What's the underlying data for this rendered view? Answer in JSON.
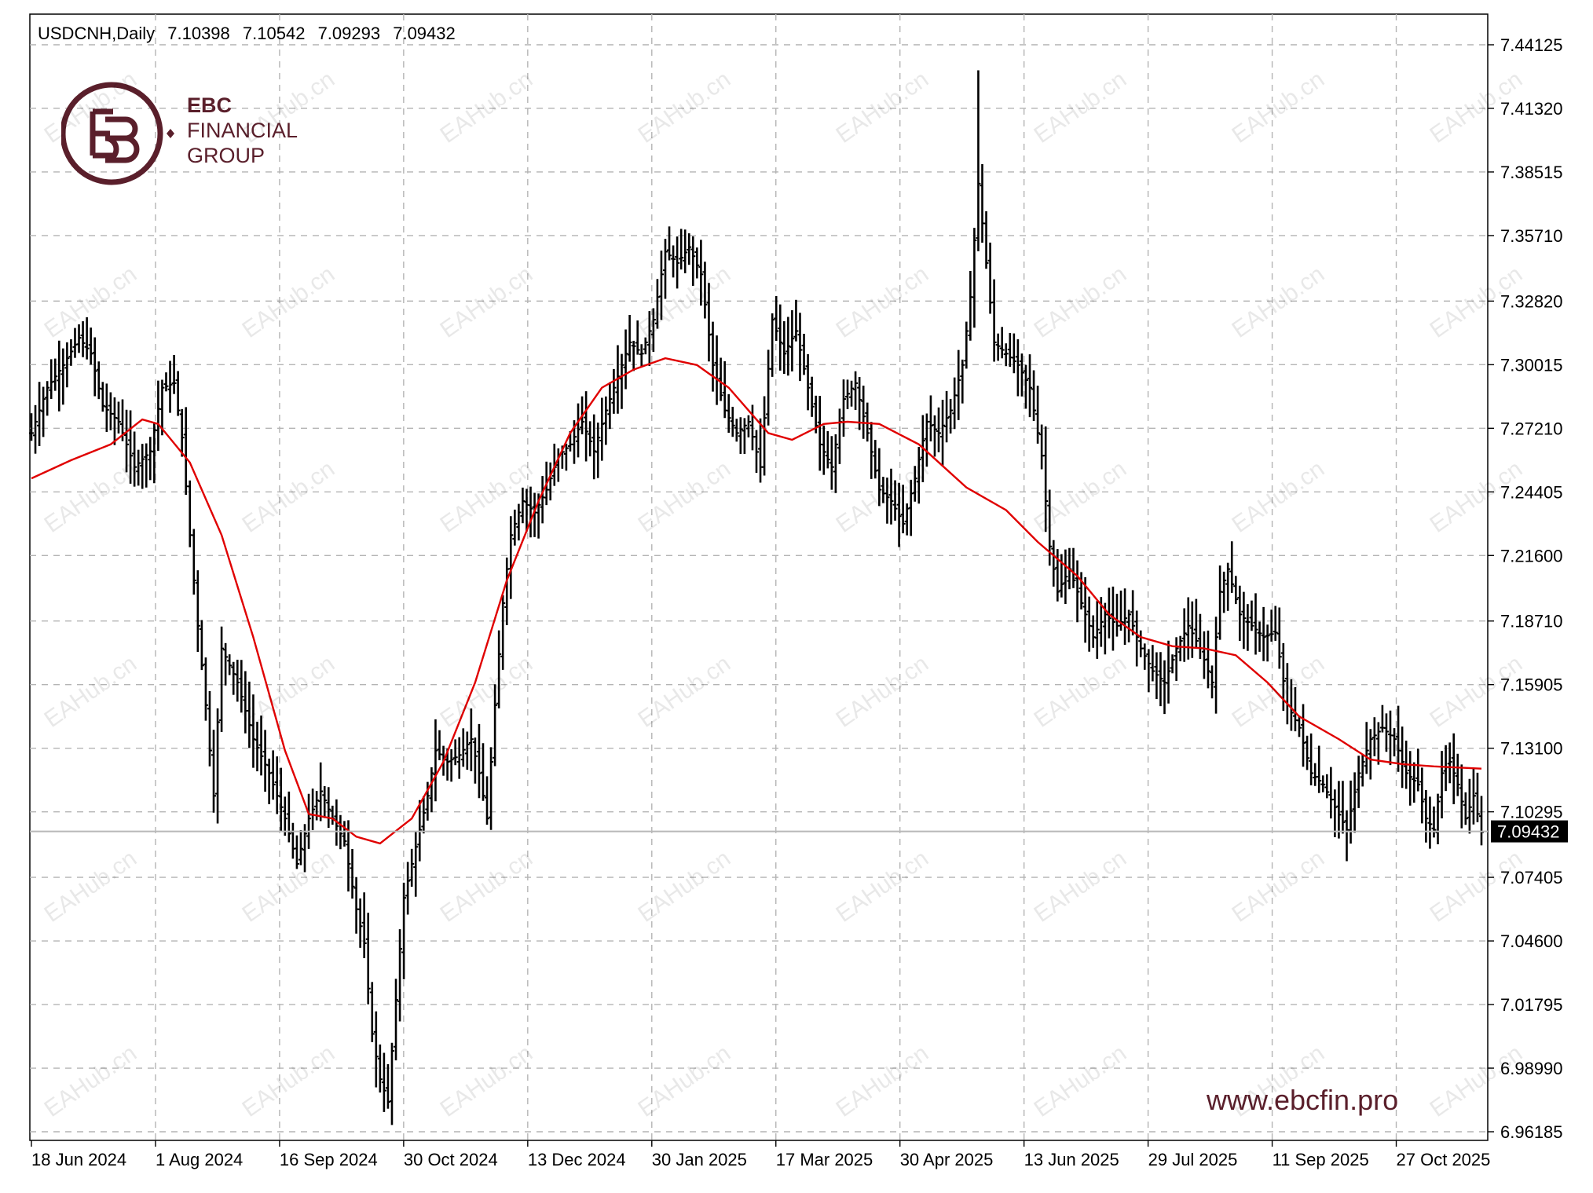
{
  "header": {
    "symbol": "USDCNH,Daily",
    "open": "7.10398",
    "high": "7.10542",
    "low": "7.09293",
    "close": "7.09432"
  },
  "logo": {
    "line1": "EBC",
    "line2": "FINANCIAL",
    "line3": "GROUP"
  },
  "website": "www.ebcfin.pro",
  "watermark": "EAHub.cn",
  "colors": {
    "bars": "#000000",
    "ma": "#e00000",
    "grid": "#b4b4b4",
    "brand": "#5a1f2b",
    "current_price_box": "#000000"
  },
  "chart_data": {
    "type": "line",
    "title": "USDCNH,Daily",
    "series_style": "ohlc-bars with red moving average",
    "x_tick_labels": [
      "18 Jun 2024",
      "1 Aug 2024",
      "16 Sep 2024",
      "30 Oct 2024",
      "13 Dec 2024",
      "30 Jan 2025",
      "17 Mar 2025",
      "30 Apr 2025",
      "13 Jun 2025",
      "29 Jul 2025",
      "11 Sep 2025",
      "27 Oct 2025"
    ],
    "y_tick_labels": [
      "7.44125",
      "7.41320",
      "7.38515",
      "7.35710",
      "7.32820",
      "7.30015",
      "7.27210",
      "7.24405",
      "7.21600",
      "7.18710",
      "7.15905",
      "7.13100",
      "7.10295",
      "7.07405",
      "7.04600",
      "7.01795",
      "6.98990",
      "6.96185"
    ],
    "ylim": [
      6.96185,
      7.44125
    ],
    "current_price": "7.09432",
    "grid": true,
    "close_path": [
      [
        0,
        7.27
      ],
      [
        4,
        7.29
      ],
      [
        8,
        7.3
      ],
      [
        12,
        7.312
      ],
      [
        15,
        7.305
      ],
      [
        18,
        7.282
      ],
      [
        22,
        7.275
      ],
      [
        26,
        7.255
      ],
      [
        30,
        7.262
      ],
      [
        33,
        7.29
      ],
      [
        36,
        7.292
      ],
      [
        38,
        7.268
      ],
      [
        40,
        7.225
      ],
      [
        42,
        7.185
      ],
      [
        44,
        7.15
      ],
      [
        46,
        7.11
      ],
      [
        48,
        7.175
      ],
      [
        52,
        7.16
      ],
      [
        56,
        7.135
      ],
      [
        60,
        7.12
      ],
      [
        64,
        7.1
      ],
      [
        67,
        7.08
      ],
      [
        70,
        7.1
      ],
      [
        73,
        7.112
      ],
      [
        76,
        7.1
      ],
      [
        79,
        7.09
      ],
      [
        82,
        7.06
      ],
      [
        84,
        7.045
      ],
      [
        86,
        7.005
      ],
      [
        88,
        6.985
      ],
      [
        90,
        6.975
      ],
      [
        92,
        7.02
      ],
      [
        94,
        7.065
      ],
      [
        96,
        7.08
      ],
      [
        98,
        7.095
      ],
      [
        100,
        7.11
      ],
      [
        102,
        7.13
      ],
      [
        105,
        7.125
      ],
      [
        108,
        7.128
      ],
      [
        111,
        7.135
      ],
      [
        113,
        7.12
      ],
      [
        115,
        7.1
      ],
      [
        117,
        7.15
      ],
      [
        119,
        7.195
      ],
      [
        121,
        7.225
      ],
      [
        124,
        7.24
      ],
      [
        127,
        7.235
      ],
      [
        130,
        7.245
      ],
      [
        133,
        7.26
      ],
      [
        136,
        7.265
      ],
      [
        139,
        7.275
      ],
      [
        142,
        7.262
      ],
      [
        145,
        7.28
      ],
      [
        148,
        7.295
      ],
      [
        151,
        7.31
      ],
      [
        154,
        7.305
      ],
      [
        157,
        7.32
      ],
      [
        160,
        7.35
      ],
      [
        163,
        7.345
      ],
      [
        166,
        7.352
      ],
      [
        169,
        7.34
      ],
      [
        172,
        7.3
      ],
      [
        175,
        7.28
      ],
      [
        178,
        7.27
      ],
      [
        181,
        7.275
      ],
      [
        184,
        7.255
      ],
      [
        187,
        7.32
      ],
      [
        190,
        7.305
      ],
      [
        193,
        7.315
      ],
      [
        196,
        7.29
      ],
      [
        199,
        7.265
      ],
      [
        202,
        7.255
      ],
      [
        205,
        7.285
      ],
      [
        208,
        7.292
      ],
      [
        211,
        7.27
      ],
      [
        214,
        7.245
      ],
      [
        217,
        7.24
      ],
      [
        220,
        7.23
      ],
      [
        223,
        7.25
      ],
      [
        226,
        7.275
      ],
      [
        229,
        7.27
      ],
      [
        232,
        7.28
      ],
      [
        235,
        7.3
      ],
      [
        237,
        7.33
      ],
      [
        239,
        7.38
      ],
      [
        241,
        7.345
      ],
      [
        243,
        7.31
      ],
      [
        246,
        7.305
      ],
      [
        249,
        7.3
      ],
      [
        252,
        7.29
      ],
      [
        255,
        7.26
      ],
      [
        257,
        7.22
      ],
      [
        259,
        7.2
      ],
      [
        262,
        7.21
      ],
      [
        265,
        7.195
      ],
      [
        268,
        7.18
      ],
      [
        271,
        7.19
      ],
      [
        274,
        7.185
      ],
      [
        277,
        7.19
      ],
      [
        280,
        7.175
      ],
      [
        283,
        7.165
      ],
      [
        286,
        7.16
      ],
      [
        289,
        7.175
      ],
      [
        292,
        7.185
      ],
      [
        295,
        7.175
      ],
      [
        298,
        7.16
      ],
      [
        300,
        7.2
      ],
      [
        302,
        7.21
      ],
      [
        305,
        7.19
      ],
      [
        308,
        7.185
      ],
      [
        311,
        7.18
      ],
      [
        314,
        7.182
      ],
      [
        317,
        7.15
      ],
      [
        320,
        7.14
      ],
      [
        323,
        7.12
      ],
      [
        326,
        7.115
      ],
      [
        329,
        7.105
      ],
      [
        332,
        7.095
      ],
      [
        335,
        7.12
      ],
      [
        338,
        7.135
      ],
      [
        341,
        7.14
      ],
      [
        344,
        7.135
      ],
      [
        347,
        7.12
      ],
      [
        350,
        7.115
      ],
      [
        352,
        7.1
      ],
      [
        354,
        7.095
      ],
      [
        356,
        7.12
      ],
      [
        358,
        7.125
      ],
      [
        360,
        7.115
      ],
      [
        362,
        7.1
      ],
      [
        364,
        7.11
      ],
      [
        366,
        7.094
      ]
    ],
    "ma_path": [
      [
        0,
        7.25
      ],
      [
        10,
        7.258
      ],
      [
        20,
        7.265
      ],
      [
        28,
        7.276
      ],
      [
        32,
        7.274
      ],
      [
        40,
        7.257
      ],
      [
        48,
        7.225
      ],
      [
        56,
        7.18
      ],
      [
        64,
        7.13
      ],
      [
        70,
        7.102
      ],
      [
        76,
        7.1
      ],
      [
        82,
        7.092
      ],
      [
        88,
        7.089
      ],
      [
        96,
        7.1
      ],
      [
        104,
        7.125
      ],
      [
        112,
        7.16
      ],
      [
        120,
        7.205
      ],
      [
        128,
        7.24
      ],
      [
        136,
        7.27
      ],
      [
        144,
        7.29
      ],
      [
        152,
        7.298
      ],
      [
        160,
        7.303
      ],
      [
        168,
        7.3
      ],
      [
        176,
        7.29
      ],
      [
        186,
        7.27
      ],
      [
        192,
        7.267
      ],
      [
        200,
        7.274
      ],
      [
        206,
        7.275
      ],
      [
        214,
        7.274
      ],
      [
        224,
        7.265
      ],
      [
        236,
        7.246
      ],
      [
        246,
        7.236
      ],
      [
        254,
        7.222
      ],
      [
        264,
        7.207
      ],
      [
        272,
        7.19
      ],
      [
        280,
        7.18
      ],
      [
        288,
        7.176
      ],
      [
        296,
        7.175
      ],
      [
        304,
        7.172
      ],
      [
        312,
        7.16
      ],
      [
        320,
        7.145
      ],
      [
        330,
        7.135
      ],
      [
        338,
        7.126
      ],
      [
        346,
        7.124
      ],
      [
        354,
        7.123
      ],
      [
        366,
        7.122
      ]
    ],
    "notable_extremes": {
      "high": 7.43,
      "low": 6.972
    }
  }
}
